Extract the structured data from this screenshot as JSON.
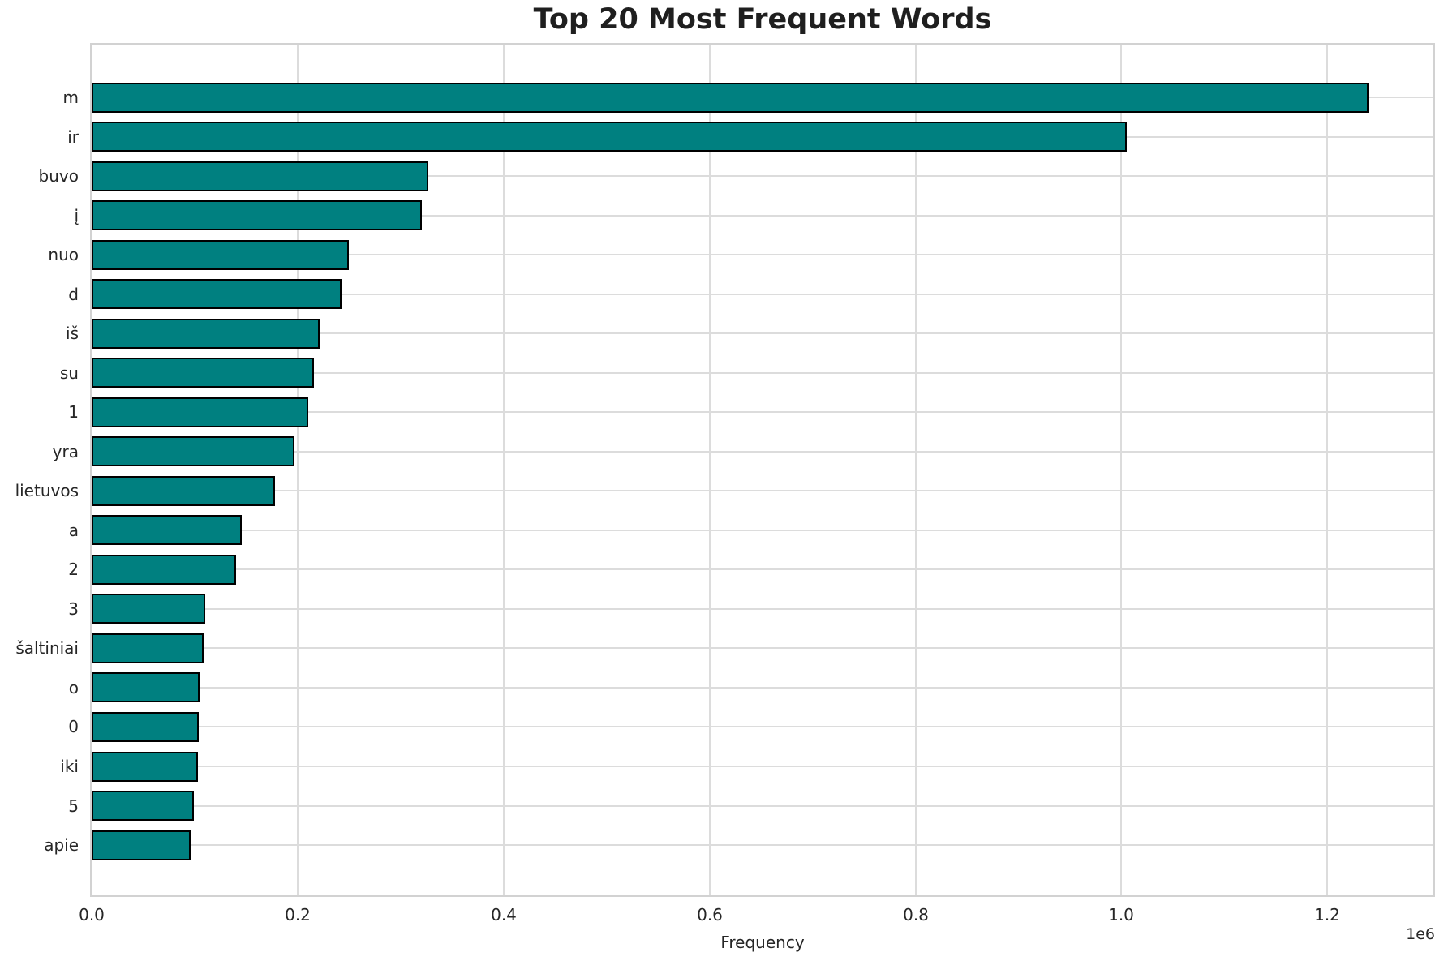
{
  "chart_data": {
    "type": "bar",
    "orientation": "horizontal",
    "title": "Top 20 Most Frequent Words",
    "xlabel": "Frequency",
    "ylabel": "",
    "categories": [
      "m",
      "ir",
      "buvo",
      "į",
      "nuo",
      "d",
      "iš",
      "su",
      "1",
      "yra",
      "lietuvos",
      "a",
      "2",
      "3",
      "šaltiniai",
      "o",
      "0",
      "iki",
      "5",
      "apie"
    ],
    "values": [
      1240000,
      1005000,
      327000,
      321000,
      250000,
      243000,
      221000,
      216000,
      210000,
      197000,
      178000,
      146000,
      140000,
      110000,
      109000,
      105000,
      104000,
      103000,
      99000,
      96000
    ],
    "x_ticks": [
      0.0,
      0.2,
      0.4,
      0.6,
      0.8,
      1.0,
      1.2
    ],
    "x_tick_labels": [
      "0.0",
      "0.2",
      "0.4",
      "0.6",
      "0.8",
      "1.0",
      "1.2"
    ],
    "x_offset_label": "1e6",
    "x_tick_scale": 1000000,
    "xlim": [
      0,
      1303000
    ],
    "grid": true,
    "legend": false,
    "bar_color": "#008080",
    "bar_edge_color": "#000000",
    "grid_color": "#dcdcdc",
    "spine_color": "#d2d2d2",
    "text_color": "#262626"
  }
}
